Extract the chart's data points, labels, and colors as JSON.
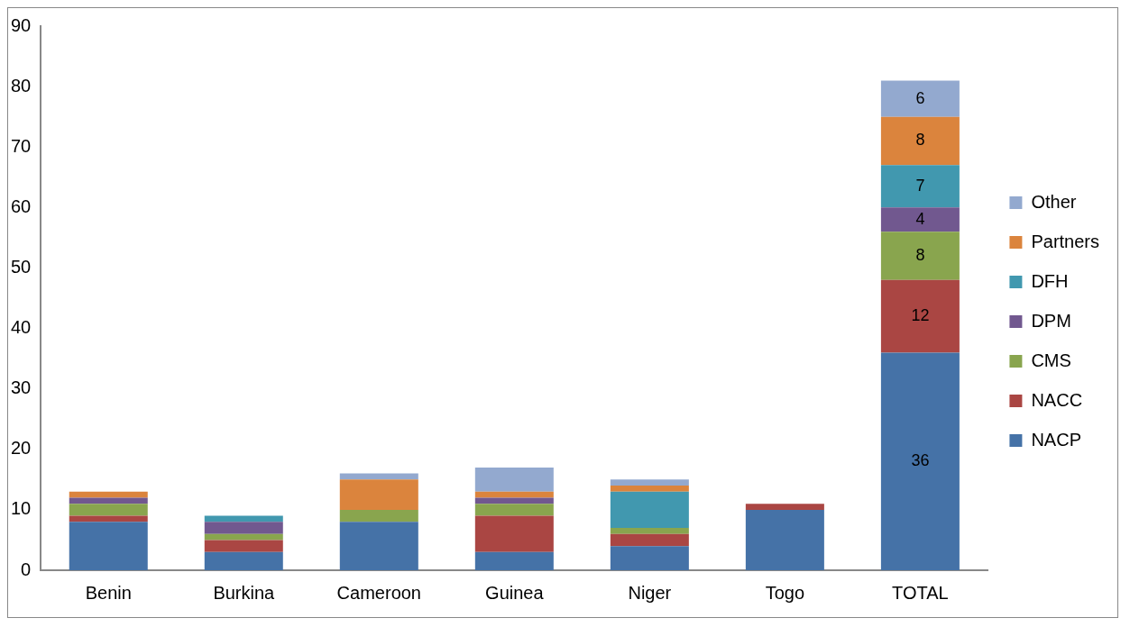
{
  "chart_data": {
    "type": "bar",
    "stacked": true,
    "categories": [
      "Benin",
      "Burkina",
      "Cameroon",
      "Guinea",
      "Niger",
      "Togo",
      "TOTAL"
    ],
    "series": [
      {
        "name": "NACP",
        "color": "#4572a7",
        "values": [
          8,
          3,
          8,
          3,
          4,
          10,
          36
        ],
        "value_labels": [
          null,
          null,
          null,
          null,
          null,
          null,
          "36"
        ]
      },
      {
        "name": "NACC",
        "color": "#aa4643",
        "values": [
          1,
          2,
          0,
          6,
          2,
          1,
          12
        ],
        "value_labels": [
          null,
          null,
          null,
          null,
          null,
          null,
          "12"
        ]
      },
      {
        "name": "CMS",
        "color": "#89a54e",
        "values": [
          2,
          1,
          2,
          2,
          1,
          0,
          8
        ],
        "value_labels": [
          null,
          null,
          null,
          null,
          null,
          null,
          "8"
        ]
      },
      {
        "name": "DPM",
        "color": "#71588f",
        "values": [
          1,
          2,
          0,
          1,
          0,
          0,
          4
        ],
        "value_labels": [
          null,
          null,
          null,
          null,
          null,
          null,
          "4"
        ]
      },
      {
        "name": "DFH",
        "color": "#4198af",
        "values": [
          0,
          1,
          0,
          0,
          6,
          0,
          7
        ],
        "value_labels": [
          null,
          null,
          null,
          null,
          null,
          null,
          "7"
        ]
      },
      {
        "name": "Partners",
        "color": "#db843d",
        "values": [
          1,
          0,
          5,
          1,
          1,
          0,
          8
        ],
        "value_labels": [
          null,
          null,
          null,
          null,
          null,
          null,
          "8"
        ]
      },
      {
        "name": "Other",
        "color": "#93a9cf",
        "values": [
          0,
          0,
          1,
          4,
          1,
          0,
          6
        ],
        "value_labels": [
          null,
          null,
          null,
          null,
          null,
          null,
          "6"
        ]
      }
    ],
    "ylim": [
      0,
      90
    ],
    "yticks": [
      0,
      10,
      20,
      30,
      40,
      50,
      60,
      70,
      80,
      90
    ],
    "grid": false,
    "legend": "right"
  }
}
